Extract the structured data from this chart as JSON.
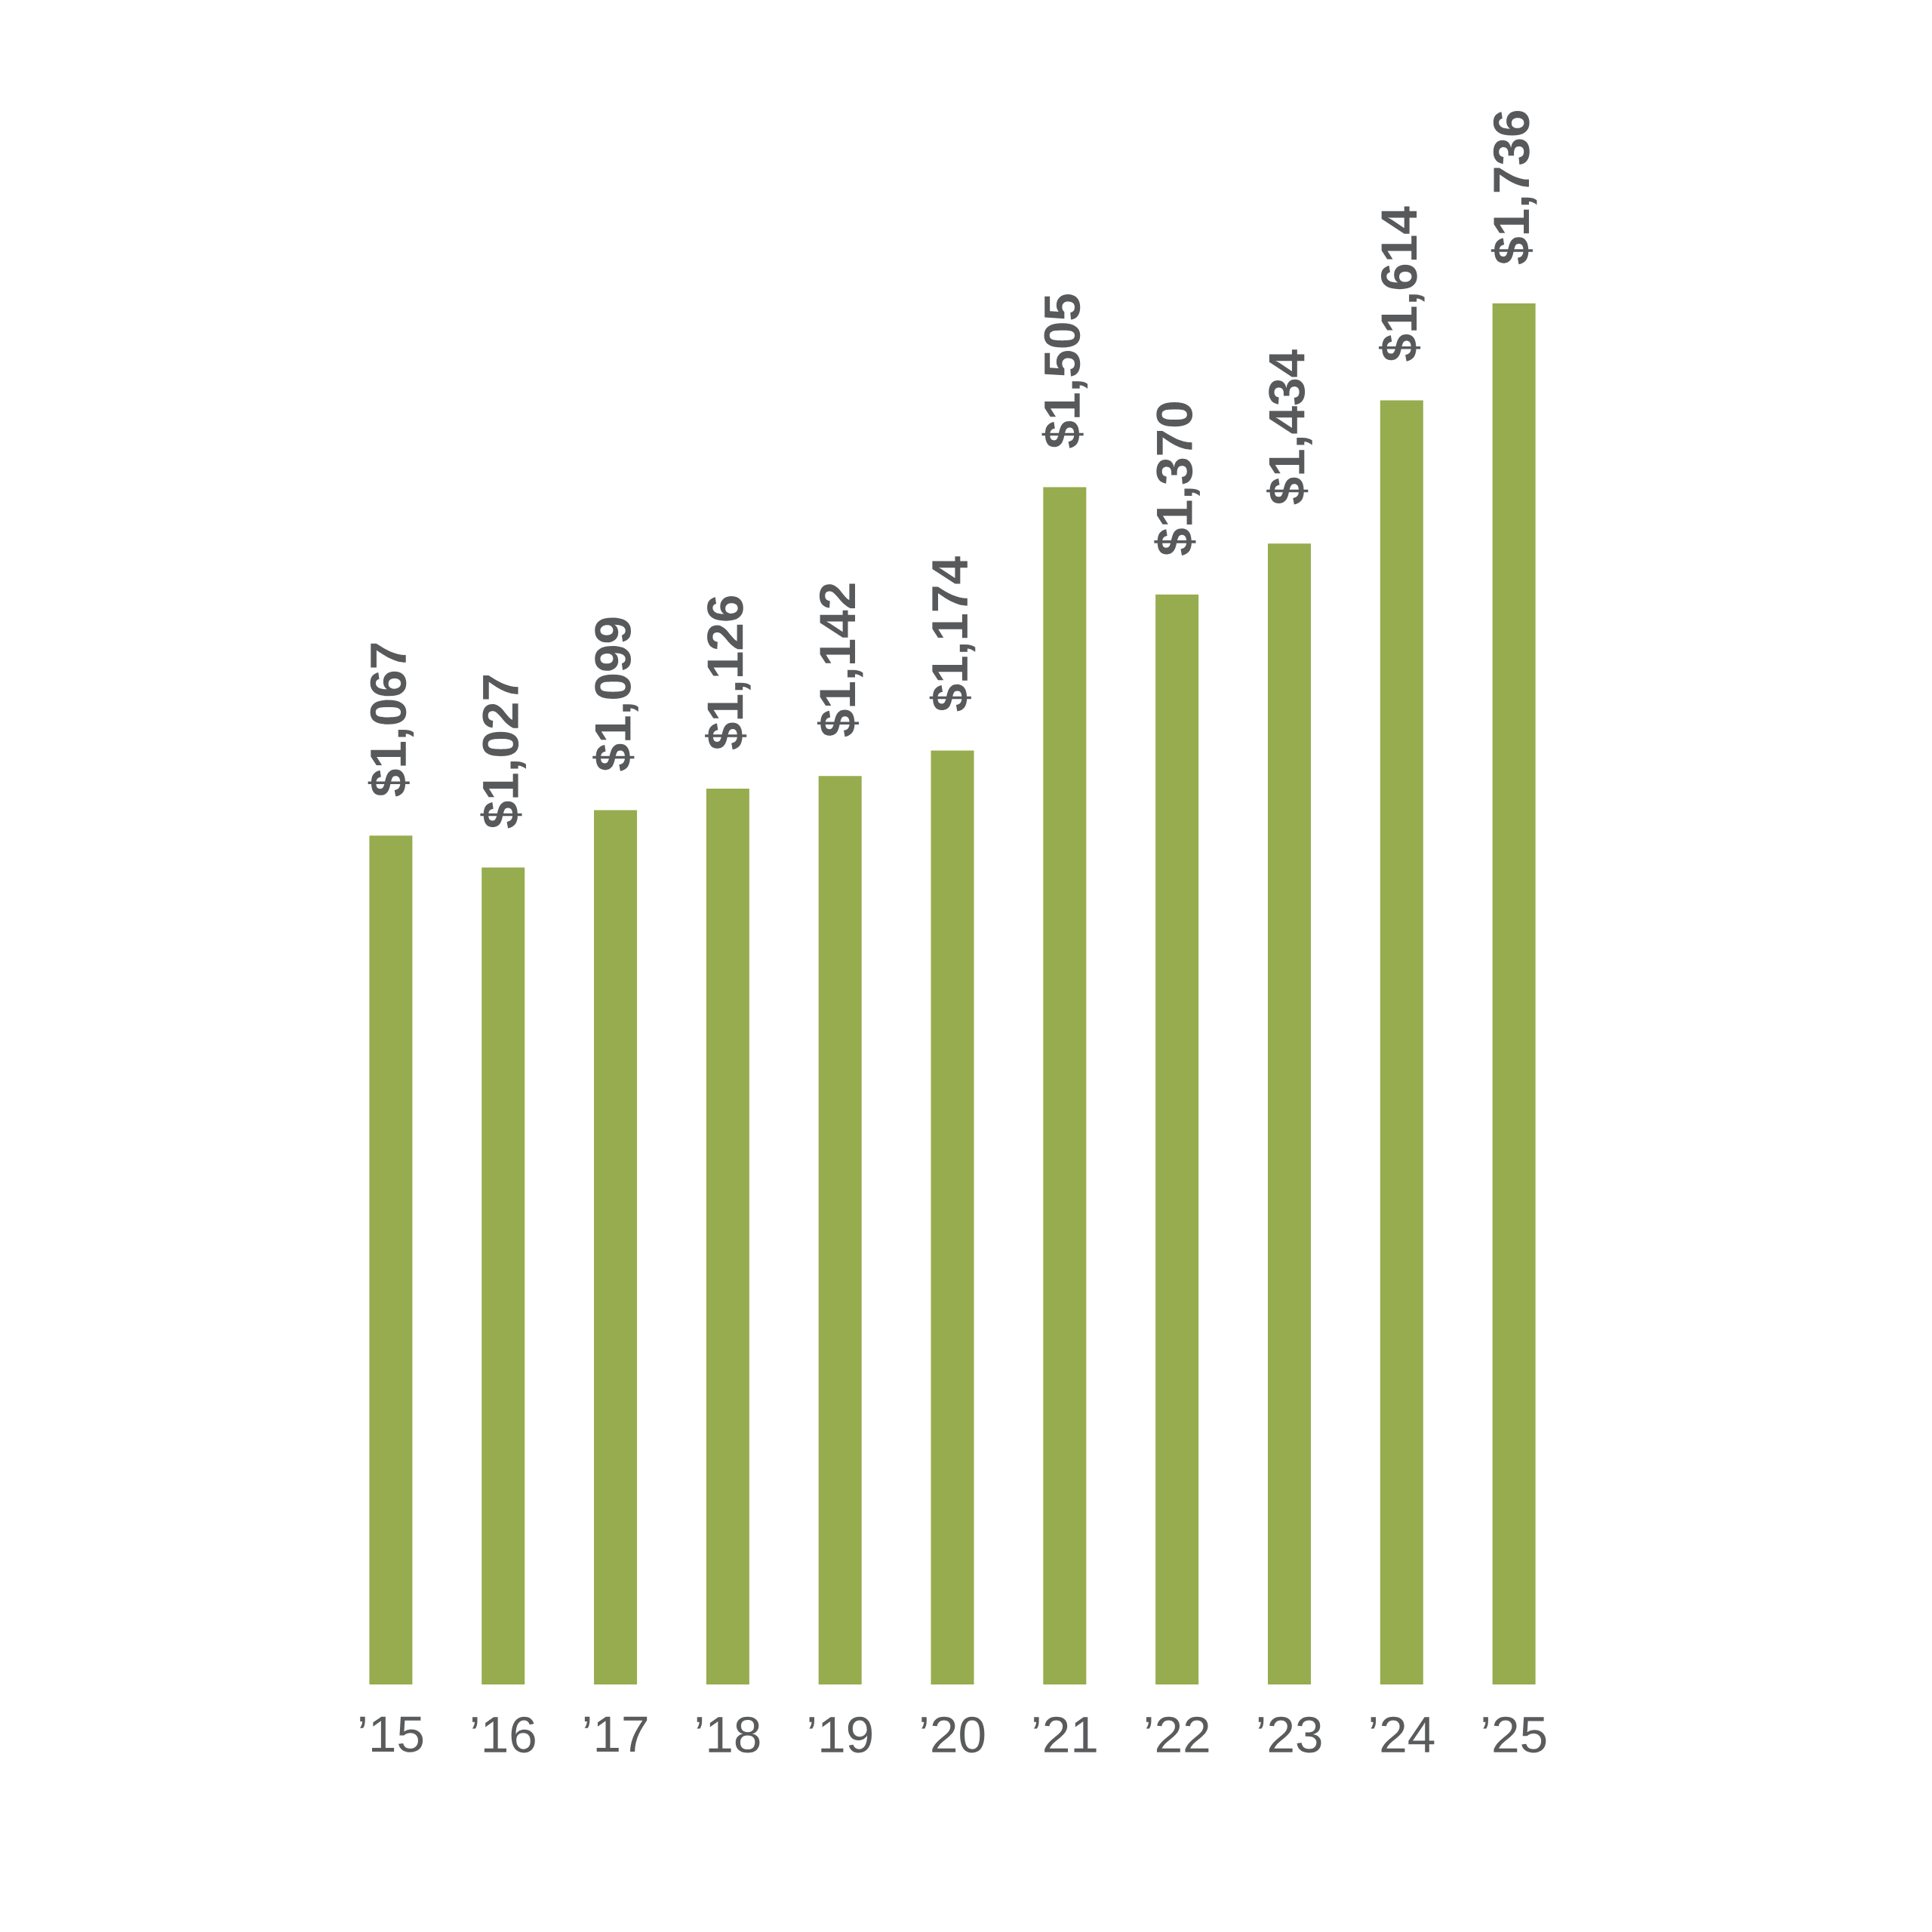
{
  "chart_data": {
    "type": "bar",
    "categories": [
      "’15",
      "’16",
      "’17",
      "’18",
      "’19",
      "’20",
      "’21",
      "’22",
      "’23",
      "’24",
      "’25"
    ],
    "values": [
      1067,
      1027,
      1099,
      1126,
      1142,
      1174,
      1505,
      1370,
      1434,
      1614,
      1736
    ],
    "value_labels": [
      "$1,067",
      "$1,027",
      "$1,099",
      "$1,126",
      "$1,142",
      "$1,174",
      "$1,505",
      "$1,370",
      "$1,434",
      "$1,614",
      "$1,736"
    ],
    "color": "#96ac4e",
    "tick_labels": "x"
  }
}
